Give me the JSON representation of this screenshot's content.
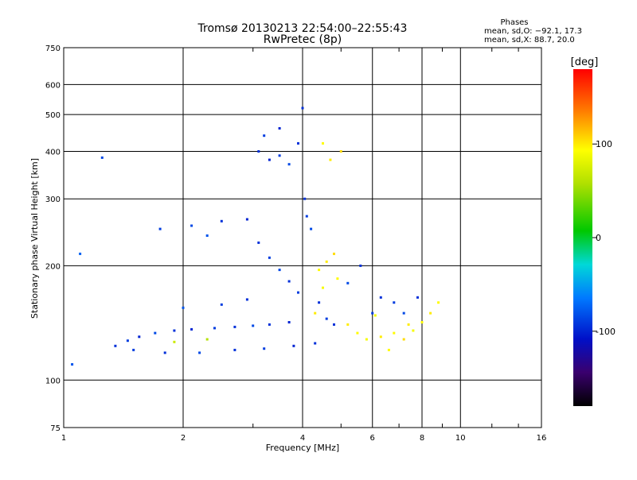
{
  "chart_data": {
    "type": "scatter",
    "title": "Tromsø 20130213 22:54:00–22:55:43",
    "subtitle": "RwPretec (8p)",
    "xlabel": "Frequency [MHz]",
    "ylabel": "Stationary phase Virtual Height [km]",
    "x_scale": "log",
    "y_scale": "log",
    "xlim": [
      1,
      16
    ],
    "ylim": [
      75,
      750
    ],
    "x_ticks": [
      1,
      2,
      4,
      6,
      8,
      10,
      16
    ],
    "x_tick_labels": [
      "1",
      "2",
      "4",
      "6",
      "8",
      "10",
      "16"
    ],
    "y_ticks": [
      75,
      100,
      200,
      300,
      400,
      500,
      600,
      750
    ],
    "y_tick_labels": [
      "75",
      "100",
      "200",
      "300",
      "400",
      "500",
      "600",
      "750"
    ],
    "grid": true,
    "phase_info": {
      "title": "Phases",
      "o_line": "mean, sd,O: −92.1, 17.3",
      "x_line": "mean, sd,X:  88.7, 20.0"
    },
    "colorbar": {
      "label": "[deg]",
      "range": [
        -180,
        180
      ],
      "ticks": [
        100,
        0,
        -100
      ],
      "tick_labels": [
        "100",
        "0",
        "-100"
      ]
    },
    "series": [
      {
        "values": [
          [
            1.35,
            123,
            -95
          ],
          [
            1.45,
            127,
            -90
          ],
          [
            1.55,
            130,
            -100
          ],
          [
            1.7,
            133,
            -85
          ],
          [
            1.9,
            135,
            -95
          ],
          [
            2.1,
            136,
            -100
          ],
          [
            2.4,
            137,
            -90
          ],
          [
            2.7,
            138,
            -95
          ],
          [
            3.0,
            139,
            -85
          ],
          [
            3.3,
            140,
            -95
          ],
          [
            3.7,
            142,
            -100
          ],
          [
            1.5,
            120,
            -90
          ],
          [
            1.8,
            118,
            -95
          ],
          [
            2.2,
            118,
            -85
          ],
          [
            2.7,
            120,
            -95
          ],
          [
            3.2,
            121,
            -90
          ],
          [
            3.8,
            123,
            -100
          ],
          [
            4.3,
            125,
            -95
          ],
          [
            2.0,
            155,
            -80
          ],
          [
            2.5,
            158,
            -90
          ],
          [
            2.9,
            163,
            -95
          ],
          [
            1.75,
            250,
            -90
          ],
          [
            2.1,
            255,
            -85
          ],
          [
            2.5,
            262,
            -95
          ],
          [
            2.3,
            240,
            -80
          ],
          [
            2.9,
            265,
            -100
          ],
          [
            3.1,
            230,
            -95
          ],
          [
            3.3,
            210,
            -90
          ],
          [
            3.5,
            195,
            -85
          ],
          [
            3.7,
            182,
            -95
          ],
          [
            3.9,
            170,
            -90
          ],
          [
            3.1,
            400,
            -95
          ],
          [
            3.3,
            380,
            -100
          ],
          [
            3.5,
            390,
            -90
          ],
          [
            3.7,
            370,
            -85
          ],
          [
            3.9,
            420,
            -95
          ],
          [
            3.2,
            440,
            -90
          ],
          [
            3.5,
            460,
            -100
          ],
          [
            4.0,
            520,
            -95
          ],
          [
            4.05,
            300,
            -95
          ],
          [
            4.1,
            270,
            -90
          ],
          [
            4.2,
            250,
            -85
          ],
          [
            4.4,
            160,
            -95
          ],
          [
            4.6,
            145,
            -90
          ],
          [
            4.8,
            140,
            -95
          ],
          [
            5.2,
            180,
            -85
          ],
          [
            5.6,
            200,
            -95
          ],
          [
            6.0,
            150,
            -90
          ],
          [
            6.3,
            165,
            -95
          ],
          [
            6.8,
            160,
            -90
          ],
          [
            7.2,
            150,
            -85
          ],
          [
            7.8,
            165,
            -95
          ],
          [
            1.05,
            110,
            -80
          ],
          [
            1.25,
            385,
            -85
          ],
          [
            1.1,
            215,
            -75
          ]
        ]
      },
      {
        "values": [
          [
            4.4,
            195,
            95
          ],
          [
            4.6,
            205,
            100
          ],
          [
            4.8,
            215,
            105
          ],
          [
            4.5,
            175,
            90
          ],
          [
            4.9,
            185,
            95
          ],
          [
            5.2,
            140,
            100
          ],
          [
            5.5,
            133,
            95
          ],
          [
            5.8,
            128,
            90
          ],
          [
            6.3,
            130,
            100
          ],
          [
            6.8,
            133,
            95
          ],
          [
            7.2,
            128,
            105
          ],
          [
            7.6,
            135,
            90
          ],
          [
            8.0,
            142,
            95
          ],
          [
            8.4,
            150,
            100
          ],
          [
            8.8,
            160,
            95
          ],
          [
            6.1,
            148,
            90
          ],
          [
            4.7,
            380,
            100
          ],
          [
            4.5,
            420,
            95
          ],
          [
            5.0,
            400,
            105
          ],
          [
            4.3,
            150,
            100
          ],
          [
            1.9,
            126,
            70
          ],
          [
            2.3,
            128,
            60
          ],
          [
            6.6,
            120,
            95
          ],
          [
            7.4,
            140,
            100
          ]
        ]
      }
    ]
  }
}
